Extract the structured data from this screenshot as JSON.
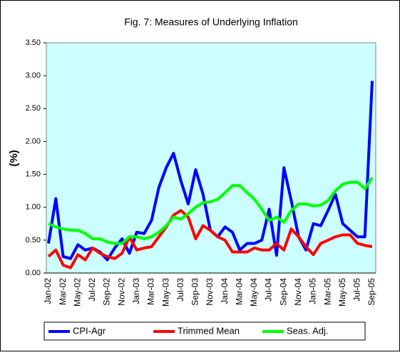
{
  "chart_data": {
    "type": "line",
    "title": "Fig. 7: Measures  of Underlying Inflation",
    "y_label": "(%)",
    "categories": [
      "Jan-02",
      null,
      "Mar-02",
      null,
      "May-02",
      null,
      "Jul-02",
      null,
      "Sep-02",
      null,
      "Nov-02",
      null,
      "Jan-03",
      null,
      "Mar-03",
      null,
      "May-03",
      null,
      "Jul-03",
      null,
      "Sep-03",
      null,
      "Nov-03",
      null,
      "Jan-04",
      null,
      "Mar-04",
      null,
      "May-04",
      null,
      "Jul-04",
      null,
      "Sep-04",
      null,
      "Nov-04",
      null,
      "Jan-05",
      null,
      "Mar-05",
      null,
      "May-05",
      null,
      "Jul-05",
      null,
      "Sep-05"
    ],
    "series": [
      {
        "name": "CPI-Agr",
        "color": "#0000ff",
        "values": [
          0.45,
          1.13,
          0.25,
          0.22,
          0.43,
          0.35,
          0.38,
          0.32,
          0.2,
          0.38,
          0.52,
          0.3,
          0.62,
          0.6,
          0.8,
          1.3,
          1.6,
          1.82,
          1.4,
          1.05,
          1.57,
          1.2,
          0.65,
          0.55,
          0.7,
          0.62,
          0.35,
          0.45,
          0.45,
          0.5,
          0.97,
          0.27,
          1.6,
          1.1,
          0.55,
          0.35,
          0.75,
          0.72,
          0.95,
          1.2,
          0.75,
          0.65,
          0.55,
          0.55,
          2.92
        ]
      },
      {
        "name": "Trimmed Mean",
        "color": "#ff0000",
        "values": [
          0.25,
          0.35,
          0.12,
          0.08,
          0.28,
          0.2,
          0.38,
          0.3,
          0.25,
          0.22,
          0.3,
          0.55,
          0.35,
          0.38,
          0.4,
          0.55,
          0.7,
          0.88,
          0.95,
          0.85,
          0.52,
          0.72,
          0.65,
          0.55,
          0.5,
          0.32,
          0.32,
          0.32,
          0.38,
          0.35,
          0.35,
          0.45,
          0.35,
          0.67,
          0.55,
          0.4,
          0.28,
          0.45,
          0.5,
          0.55,
          0.58,
          0.58,
          0.45,
          0.42,
          0.4
        ]
      },
      {
        "name": "Seas. Adj.",
        "color": "#00ff00",
        "values": [
          0.75,
          0.7,
          0.67,
          0.65,
          0.65,
          0.6,
          0.52,
          0.52,
          0.47,
          0.45,
          0.45,
          0.55,
          0.55,
          0.52,
          0.55,
          0.62,
          0.72,
          0.85,
          0.82,
          0.9,
          1.0,
          1.07,
          1.08,
          1.12,
          1.22,
          1.33,
          1.33,
          1.22,
          1.12,
          0.97,
          0.8,
          0.85,
          0.77,
          0.95,
          1.05,
          1.05,
          1.02,
          1.03,
          1.1,
          1.25,
          1.35,
          1.38,
          1.38,
          1.28,
          1.45
        ]
      }
    ],
    "ylim": [
      0,
      3.5
    ],
    "yticks": [
      {
        "value": 0,
        "label": "0.00"
      },
      {
        "value": 0.5,
        "label": "0.50"
      },
      {
        "value": 1,
        "label": "1.00"
      },
      {
        "value": 1.5,
        "label": "1.50"
      },
      {
        "value": 2,
        "label": "2.00"
      },
      {
        "value": 2.5,
        "label": "2.50"
      },
      {
        "value": 3,
        "label": "3.00"
      },
      {
        "value": 3.5,
        "label": "3.50"
      }
    ],
    "legend": "bottom"
  }
}
